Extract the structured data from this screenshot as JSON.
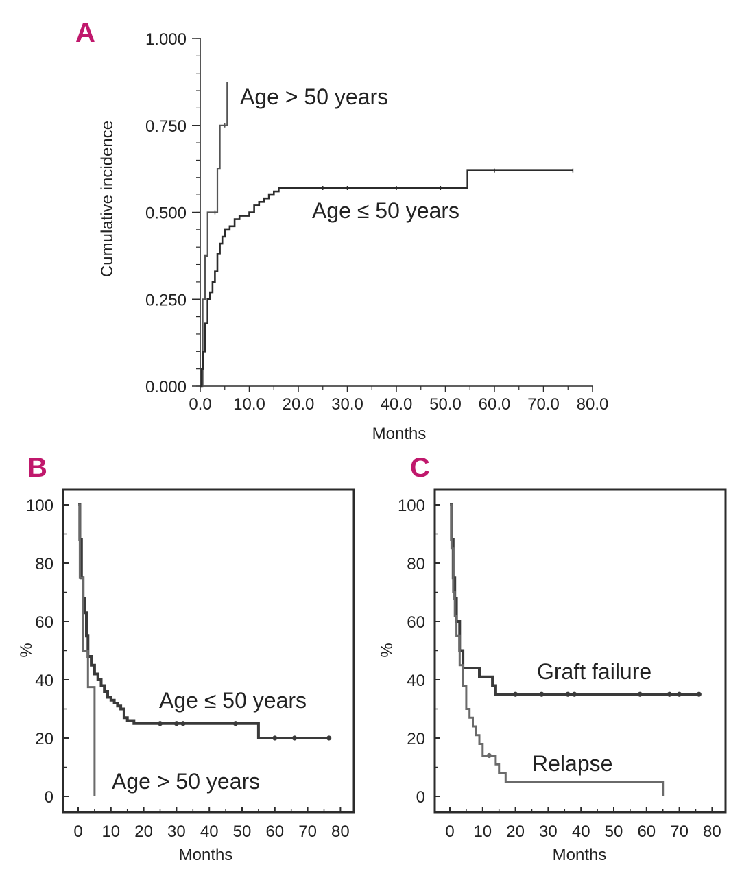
{
  "colors": {
    "accent": "#c0186c",
    "ink": "#2b2b2b",
    "grey_line": "#555555"
  },
  "chart_data": [
    {
      "panel": "A",
      "type": "line",
      "step": true,
      "xlabel": "Months",
      "ylabel": "Cumulative incidence",
      "xlim": [
        0,
        80
      ],
      "ylim": [
        0,
        1
      ],
      "xticks": [
        0,
        10,
        20,
        30,
        40,
        50,
        60,
        70,
        80
      ],
      "xtick_labels": [
        "0.0",
        "10.0",
        "20.0",
        "30.0",
        "40.0",
        "50.0",
        "60.0",
        "70.0",
        "80.0"
      ],
      "yticks": [
        0,
        0.25,
        0.5,
        0.75,
        1.0
      ],
      "ytick_labels": [
        "0.000",
        "0.250",
        "0.500",
        "0.750",
        "1.000"
      ],
      "series": [
        {
          "name": "Age > 50 years",
          "label": "Age > 50 years",
          "x": [
            0,
            0.5,
            1,
            1.5,
            3,
            3.5,
            4,
            5,
            5.5
          ],
          "y": [
            0,
            0.25,
            0.375,
            0.5,
            0.5,
            0.625,
            0.75,
            0.75,
            0.875
          ]
        },
        {
          "name": "Age ≤ 50 years",
          "label": "Age ≤ 50 years",
          "x": [
            0,
            0.3,
            0.6,
            1,
            1.5,
            2,
            2.5,
            3,
            3.5,
            4,
            4.5,
            5,
            6,
            7,
            8,
            10,
            11,
            12,
            13,
            14,
            15,
            16,
            25,
            30,
            40,
            49,
            54.5,
            60,
            76
          ],
          "y": [
            0,
            0.05,
            0.1,
            0.18,
            0.25,
            0.27,
            0.3,
            0.33,
            0.38,
            0.41,
            0.43,
            0.45,
            0.46,
            0.48,
            0.49,
            0.5,
            0.52,
            0.53,
            0.54,
            0.55,
            0.56,
            0.57,
            0.57,
            0.57,
            0.57,
            0.57,
            0.62,
            0.62,
            0.62
          ]
        }
      ]
    },
    {
      "panel": "B",
      "type": "line",
      "step": true,
      "xlabel": "Months",
      "ylabel": "%",
      "xlim": [
        0,
        80
      ],
      "ylim": [
        0,
        100
      ],
      "xticks": [
        0,
        10,
        20,
        30,
        40,
        50,
        60,
        70,
        80
      ],
      "xtick_labels": [
        "0",
        "10",
        "20",
        "30",
        "40",
        "50",
        "60",
        "70",
        "80"
      ],
      "yticks": [
        0,
        20,
        40,
        60,
        80,
        100
      ],
      "ytick_labels": [
        "0",
        "20",
        "40",
        "60",
        "80",
        "100"
      ],
      "series": [
        {
          "name": "Age ≤ 50 years",
          "label": "Age ≤ 50 years",
          "x": [
            0,
            0.5,
            1,
            1.5,
            2,
            2.5,
            3,
            4,
            5,
            6,
            7,
            8,
            9,
            10,
            11,
            12,
            13,
            14,
            15,
            17,
            25,
            30,
            32,
            48,
            55,
            60,
            66,
            76.5
          ],
          "y": [
            100,
            88,
            75,
            68,
            63,
            55,
            48,
            45,
            42,
            40,
            38,
            36,
            34,
            33,
            32,
            31,
            30,
            27,
            26,
            25,
            25,
            25,
            25,
            25,
            20,
            20,
            20,
            20
          ]
        },
        {
          "name": "Age > 50 years",
          "label": "Age > 50 years",
          "x": [
            0,
            0.5,
            1.5,
            3,
            5
          ],
          "y": [
            100,
            75,
            50,
            37.5,
            0
          ]
        }
      ]
    },
    {
      "panel": "C",
      "type": "line",
      "step": true,
      "xlabel": "Months",
      "ylabel": "%",
      "xlim": [
        0,
        80
      ],
      "ylim": [
        0,
        100
      ],
      "xticks": [
        0,
        10,
        20,
        30,
        40,
        50,
        60,
        70,
        80
      ],
      "xtick_labels": [
        "0",
        "10",
        "20",
        "30",
        "40",
        "50",
        "60",
        "70",
        "80"
      ],
      "yticks": [
        0,
        20,
        40,
        60,
        80,
        100
      ],
      "ytick_labels": [
        "0",
        "20",
        "40",
        "60",
        "80",
        "100"
      ],
      "series": [
        {
          "name": "Graft failure",
          "label": "Graft failure",
          "x": [
            0,
            0.5,
            1,
            1.5,
            2,
            3,
            4,
            9,
            13,
            14,
            20,
            28,
            36,
            38,
            58,
            67,
            70,
            76
          ],
          "y": [
            100,
            88,
            75,
            68,
            60,
            50,
            44,
            41,
            38,
            35,
            35,
            35,
            35,
            35,
            35,
            35,
            35,
            35
          ]
        },
        {
          "name": "Relapse",
          "label": "Relapse",
          "x": [
            0,
            0.5,
            1,
            1.5,
            2,
            3,
            4,
            5,
            6,
            7,
            8,
            9,
            10,
            12,
            14,
            15,
            17,
            65
          ],
          "y": [
            100,
            85,
            70,
            62,
            55,
            45,
            38,
            30,
            27,
            24,
            21,
            18,
            14,
            14,
            11,
            8,
            5,
            0
          ]
        }
      ]
    }
  ]
}
